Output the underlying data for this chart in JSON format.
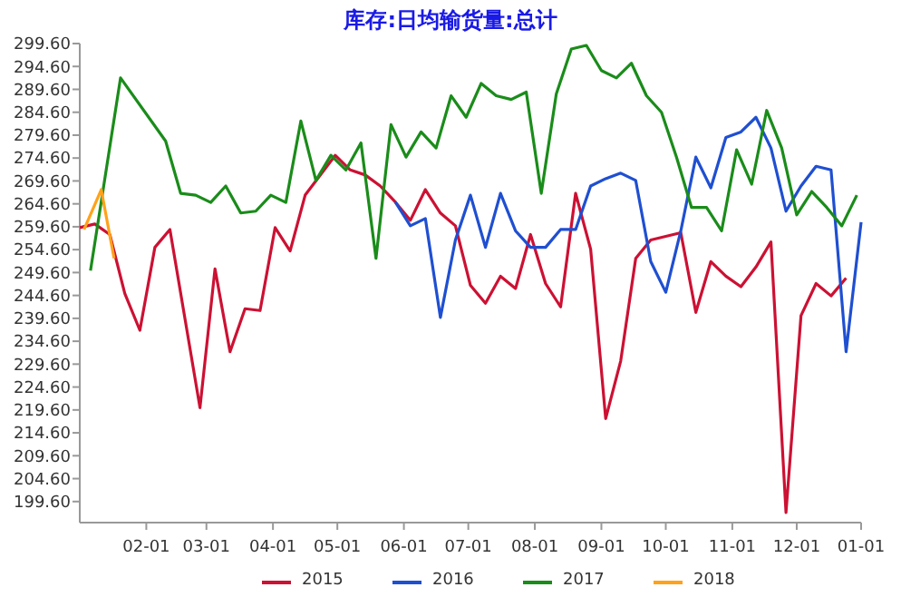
{
  "chart_data": {
    "type": "line",
    "title": "库存:日均输货量:总计",
    "xlim": [
      "--01-01",
      "--12-31"
    ],
    "xticks": [
      {
        "value": "--02-01",
        "label": "02-01"
      },
      {
        "value": "--03-01",
        "label": "03-01"
      },
      {
        "value": "--04-01",
        "label": "04-01"
      },
      {
        "value": "--05-01",
        "label": "05-01"
      },
      {
        "value": "--06-01",
        "label": "06-01"
      },
      {
        "value": "--07-01",
        "label": "07-01"
      },
      {
        "value": "--08-01",
        "label": "08-01"
      },
      {
        "value": "--09-01",
        "label": "09-01"
      },
      {
        "value": "--10-01",
        "label": "10-01"
      },
      {
        "value": "--11-01",
        "label": "11-01"
      },
      {
        "value": "--12-01",
        "label": "12-01"
      },
      {
        "value": "--12-31",
        "label": "01-01"
      }
    ],
    "ylim": [
      195,
      299.6
    ],
    "yticks": [
      {
        "value": 199.6,
        "label": "199.60"
      },
      {
        "value": 204.6,
        "label": "204.60"
      },
      {
        "value": 209.6,
        "label": "209.60"
      },
      {
        "value": 214.6,
        "label": "214.60"
      },
      {
        "value": 219.6,
        "label": "219.60"
      },
      {
        "value": 224.6,
        "label": "224.60"
      },
      {
        "value": 229.6,
        "label": "229.60"
      },
      {
        "value": 234.6,
        "label": "234.60"
      },
      {
        "value": 239.6,
        "label": "239.60"
      },
      {
        "value": 244.6,
        "label": "244.60"
      },
      {
        "value": 249.6,
        "label": "249.60"
      },
      {
        "value": 254.6,
        "label": "254.60"
      },
      {
        "value": 259.6,
        "label": "259.60"
      },
      {
        "value": 264.6,
        "label": "264.60"
      },
      {
        "value": 269.6,
        "label": "269.60"
      },
      {
        "value": 274.6,
        "label": "274.60"
      },
      {
        "value": 279.6,
        "label": "279.60"
      },
      {
        "value": 284.6,
        "label": "284.60"
      },
      {
        "value": 289.6,
        "label": "289.60"
      },
      {
        "value": 294.6,
        "label": "294.60"
      },
      {
        "value": 299.6,
        "label": "299.60"
      }
    ],
    "grid": false,
    "legend": "bottom",
    "marker": "none",
    "line_style": "solid",
    "series": [
      {
        "name": "2015",
        "color": "#cc1133",
        "x": [
          "--01-01",
          "--01-08",
          "--01-15",
          "--01-22",
          "--01-29",
          "--02-05",
          "--02-12",
          "--02-26",
          "--03-05",
          "--03-12",
          "--03-19",
          "--03-26",
          "--04-02",
          "--04-09",
          "--04-16",
          "--04-30",
          "--05-07",
          "--05-14",
          "--05-21",
          "--05-28",
          "--06-04",
          "--06-11",
          "--06-18",
          "--06-25",
          "--07-02",
          "--07-09",
          "--07-16",
          "--07-23",
          "--07-30",
          "--08-06",
          "--08-13",
          "--08-20",
          "--08-27",
          "--09-03",
          "--09-10",
          "--09-17",
          "--09-24",
          "--10-01",
          "--10-08",
          "--10-15",
          "--10-22",
          "--10-29",
          "--11-05",
          "--11-12",
          "--11-19",
          "--11-26",
          "--12-03",
          "--12-10",
          "--12-17",
          "--12-24"
        ],
        "values": [
          259.4,
          260.2,
          257.9,
          245.0,
          237.0,
          255.1,
          259.0,
          220.1,
          250.4,
          232.3,
          241.7,
          241.3,
          259.4,
          254.3,
          266.5,
          275.2,
          272.0,
          270.9,
          268.5,
          265.0,
          261.0,
          267.7,
          262.6,
          259.8,
          246.8,
          242.9,
          248.8,
          246.1,
          257.9,
          247.2,
          242.1,
          266.9,
          254.7,
          217.7,
          230.3,
          252.7,
          256.7,
          257.5,
          258.3,
          240.9,
          252.0,
          248.8,
          246.5,
          250.8,
          256.3,
          197.2,
          240.2,
          247.2,
          244.5,
          248.4
        ]
      },
      {
        "name": "2016",
        "color": "#1f4fd1",
        "x": [
          "--05-28",
          "--06-04",
          "--06-11",
          "--06-18",
          "--06-25",
          "--07-02",
          "--07-09",
          "--07-16",
          "--07-23",
          "--07-30",
          "--08-06",
          "--08-13",
          "--08-20",
          "--08-27",
          "--09-03",
          "--09-10",
          "--09-17",
          "--09-24",
          "--10-01",
          "--10-08",
          "--10-15",
          "--10-22",
          "--10-29",
          "--11-05",
          "--11-12",
          "--11-19",
          "--11-26",
          "--12-03",
          "--12-10",
          "--12-17",
          "--12-24",
          "--12-31"
        ],
        "values": [
          265.0,
          259.8,
          261.4,
          239.8,
          256.7,
          266.5,
          255.1,
          266.9,
          258.7,
          255.1,
          255.1,
          259.0,
          259.0,
          268.5,
          270.1,
          271.3,
          269.7,
          252.0,
          245.3,
          258.7,
          274.8,
          268.1,
          279.1,
          280.3,
          283.5,
          276.8,
          263.0,
          268.5,
          272.8,
          272.0,
          232.3,
          260.6
        ]
      },
      {
        "name": "2017",
        "color": "#1a8c1a",
        "x": [
          "--01-06",
          "--01-20",
          "--02-10",
          "--02-17",
          "--02-24",
          "--03-03",
          "--03-10",
          "--03-17",
          "--03-24",
          "--03-31",
          "--04-07",
          "--04-14",
          "--04-21",
          "--04-28",
          "--05-05",
          "--05-12",
          "--05-19",
          "--05-26",
          "--06-02",
          "--06-09",
          "--06-16",
          "--06-23",
          "--06-30",
          "--07-07",
          "--07-14",
          "--07-21",
          "--07-28",
          "--08-04",
          "--08-11",
          "--08-18",
          "--08-25",
          "--09-01",
          "--09-08",
          "--09-15",
          "--09-22",
          "--09-29",
          "--10-06",
          "--10-13",
          "--10-20",
          "--10-27",
          "--11-03",
          "--11-10",
          "--11-17",
          "--11-24",
          "--12-01",
          "--12-08",
          "--12-15",
          "--12-22",
          "--12-29"
        ],
        "values": [
          250.0,
          292.1,
          278.3,
          266.9,
          266.5,
          264.9,
          268.5,
          262.6,
          263.0,
          266.5,
          264.9,
          282.7,
          269.7,
          275.2,
          272.0,
          277.9,
          252.7,
          281.9,
          274.8,
          280.3,
          276.8,
          288.2,
          283.5,
          290.9,
          288.2,
          287.4,
          289.0,
          266.9,
          288.6,
          298.4,
          299.2,
          293.7,
          292.1,
          295.3,
          288.2,
          284.6,
          274.8,
          263.8,
          263.8,
          258.7,
          276.4,
          268.9,
          285.0,
          276.8,
          262.2,
          267.3,
          263.8,
          259.8,
          266.5
        ]
      },
      {
        "name": "2018",
        "color": "#ffa21a",
        "x": [
          "--01-03",
          "--01-11",
          "--01-17"
        ],
        "values": [
          259.0,
          267.7,
          252.7
        ]
      }
    ]
  }
}
